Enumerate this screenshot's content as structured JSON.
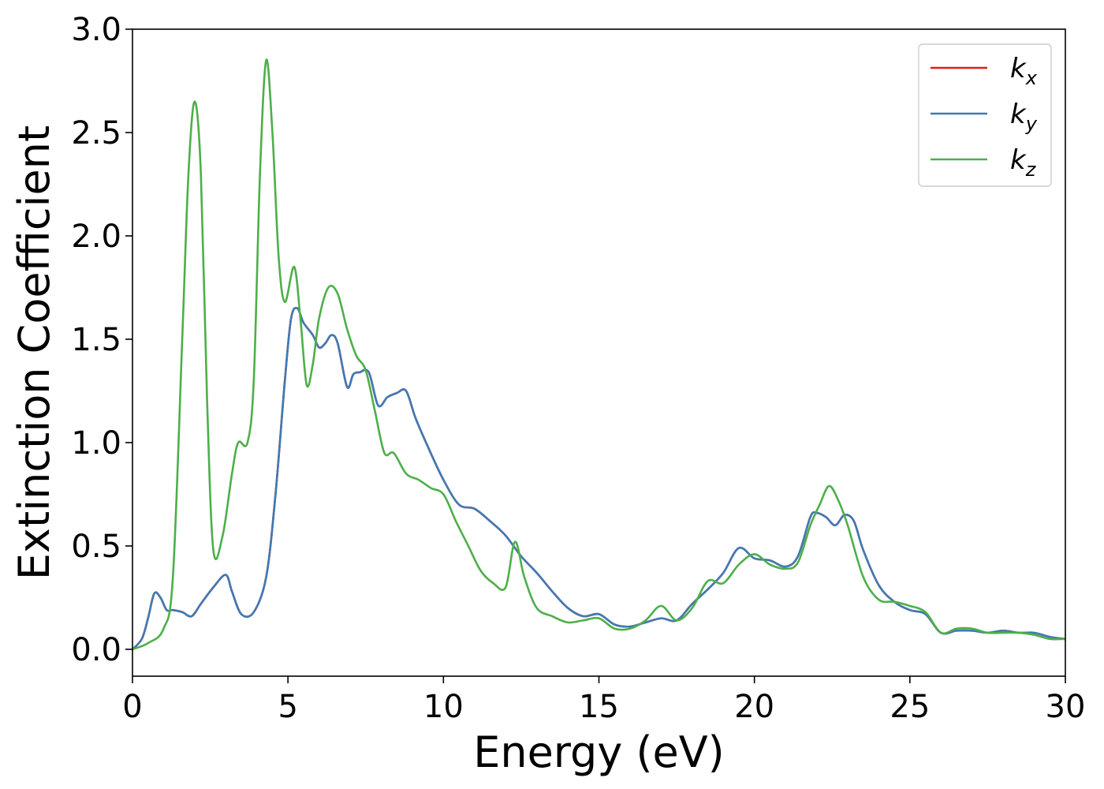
{
  "chart_data": {
    "type": "line",
    "title": "",
    "xlabel": "Energy (eV)",
    "ylabel": "Extinction Coefficient",
    "xlim": [
      0,
      30
    ],
    "ylim": [
      -0.13,
      3.0
    ],
    "xticks": [
      0,
      5,
      10,
      15,
      20,
      25,
      30
    ],
    "xtick_labels": [
      "0",
      "5",
      "10",
      "15",
      "20",
      "25",
      "30"
    ],
    "yticks": [
      0.0,
      0.5,
      1.0,
      1.5,
      2.0,
      2.5,
      3.0
    ],
    "ytick_labels": [
      "0.0",
      "0.5",
      "1.0",
      "1.5",
      "2.0",
      "2.5",
      "3.0"
    ],
    "grid": false,
    "legend_position": "top-right",
    "series": [
      {
        "name": "k",
        "subscript": "x",
        "color": "#e41a1c",
        "x": [
          0,
          0.3,
          0.5,
          0.7,
          0.9,
          1.1,
          1.3,
          1.6,
          1.9,
          2.2,
          2.6,
          3.0,
          3.2,
          3.5,
          3.9,
          4.3,
          4.6,
          4.9,
          5.1,
          5.3,
          5.5,
          5.8,
          6.0,
          6.2,
          6.4,
          6.6,
          6.9,
          7.1,
          7.3,
          7.6,
          7.9,
          8.2,
          8.5,
          8.8,
          9.1,
          9.5,
          10.0,
          10.5,
          11.0,
          11.5,
          12.0,
          12.5,
          13.0,
          13.5,
          14.0,
          14.5,
          15.0,
          15.5,
          16.0,
          16.5,
          17.0,
          17.5,
          18.0,
          18.5,
          19.0,
          19.5,
          20.0,
          20.5,
          21.0,
          21.4,
          21.8,
          22.0,
          22.3,
          22.6,
          22.9,
          23.2,
          23.5,
          24.0,
          24.5,
          25.0,
          25.5,
          26.0,
          26.5,
          27.0,
          27.5,
          28.0,
          28.5,
          29.0,
          29.5,
          30.0
        ],
        "y": [
          0.0,
          0.05,
          0.15,
          0.27,
          0.25,
          0.19,
          0.19,
          0.18,
          0.16,
          0.22,
          0.3,
          0.36,
          0.28,
          0.17,
          0.18,
          0.35,
          0.75,
          1.3,
          1.6,
          1.65,
          1.58,
          1.52,
          1.46,
          1.48,
          1.52,
          1.48,
          1.27,
          1.33,
          1.34,
          1.34,
          1.18,
          1.22,
          1.24,
          1.25,
          1.12,
          0.98,
          0.82,
          0.7,
          0.68,
          0.62,
          0.55,
          0.45,
          0.37,
          0.28,
          0.2,
          0.16,
          0.17,
          0.12,
          0.11,
          0.13,
          0.15,
          0.14,
          0.22,
          0.29,
          0.37,
          0.49,
          0.44,
          0.43,
          0.4,
          0.45,
          0.64,
          0.66,
          0.64,
          0.6,
          0.65,
          0.62,
          0.48,
          0.31,
          0.23,
          0.19,
          0.17,
          0.08,
          0.09,
          0.09,
          0.08,
          0.09,
          0.08,
          0.08,
          0.06,
          0.05
        ]
      },
      {
        "name": "k",
        "subscript": "y",
        "color": "#3f7ab5",
        "x": [
          0,
          0.3,
          0.5,
          0.7,
          0.9,
          1.1,
          1.3,
          1.6,
          1.9,
          2.2,
          2.6,
          3.0,
          3.2,
          3.5,
          3.9,
          4.3,
          4.6,
          4.9,
          5.1,
          5.3,
          5.5,
          5.8,
          6.0,
          6.2,
          6.4,
          6.6,
          6.9,
          7.1,
          7.3,
          7.6,
          7.9,
          8.2,
          8.5,
          8.8,
          9.1,
          9.5,
          10.0,
          10.5,
          11.0,
          11.5,
          12.0,
          12.5,
          13.0,
          13.5,
          14.0,
          14.5,
          15.0,
          15.5,
          16.0,
          16.5,
          17.0,
          17.5,
          18.0,
          18.5,
          19.0,
          19.5,
          20.0,
          20.5,
          21.0,
          21.4,
          21.8,
          22.0,
          22.3,
          22.6,
          22.9,
          23.2,
          23.5,
          24.0,
          24.5,
          25.0,
          25.5,
          26.0,
          26.5,
          27.0,
          27.5,
          28.0,
          28.5,
          29.0,
          29.5,
          30.0
        ],
        "y": [
          0.0,
          0.05,
          0.15,
          0.27,
          0.25,
          0.19,
          0.19,
          0.18,
          0.16,
          0.22,
          0.3,
          0.36,
          0.28,
          0.17,
          0.18,
          0.35,
          0.75,
          1.3,
          1.6,
          1.65,
          1.58,
          1.52,
          1.46,
          1.48,
          1.52,
          1.48,
          1.27,
          1.33,
          1.34,
          1.34,
          1.18,
          1.22,
          1.24,
          1.25,
          1.12,
          0.98,
          0.82,
          0.7,
          0.68,
          0.62,
          0.55,
          0.45,
          0.37,
          0.28,
          0.2,
          0.16,
          0.17,
          0.12,
          0.11,
          0.13,
          0.15,
          0.14,
          0.22,
          0.29,
          0.37,
          0.49,
          0.44,
          0.43,
          0.4,
          0.45,
          0.64,
          0.66,
          0.64,
          0.6,
          0.65,
          0.62,
          0.48,
          0.31,
          0.23,
          0.19,
          0.17,
          0.08,
          0.09,
          0.09,
          0.08,
          0.09,
          0.08,
          0.08,
          0.06,
          0.05
        ]
      },
      {
        "name": "k",
        "subscript": "z",
        "color": "#4daf4a",
        "x": [
          0,
          0.5,
          1.0,
          1.3,
          1.6,
          1.8,
          2.0,
          2.2,
          2.4,
          2.6,
          2.9,
          3.2,
          3.4,
          3.7,
          3.9,
          4.1,
          4.3,
          4.5,
          4.7,
          4.9,
          5.2,
          5.4,
          5.6,
          5.8,
          6.0,
          6.3,
          6.6,
          6.9,
          7.2,
          7.5,
          7.8,
          8.1,
          8.4,
          8.8,
          9.2,
          9.6,
          10.0,
          10.4,
          10.8,
          11.2,
          11.6,
          12.0,
          12.3,
          12.6,
          13.0,
          13.5,
          14.0,
          14.5,
          15.0,
          15.5,
          16.0,
          16.5,
          17.0,
          17.5,
          18.0,
          18.5,
          19.0,
          19.5,
          20.0,
          20.5,
          21.0,
          21.4,
          21.8,
          22.1,
          22.4,
          22.7,
          23.0,
          23.5,
          24.0,
          24.5,
          25.0,
          25.5,
          26.0,
          26.5,
          27.0,
          27.5,
          28.0,
          28.5,
          29.0,
          29.5,
          30.0
        ],
        "y": [
          0.0,
          0.03,
          0.1,
          0.35,
          1.5,
          2.3,
          2.65,
          2.3,
          1.2,
          0.48,
          0.55,
          0.85,
          1.0,
          1.0,
          1.3,
          2.3,
          2.85,
          2.5,
          1.9,
          1.68,
          1.85,
          1.6,
          1.28,
          1.38,
          1.6,
          1.75,
          1.72,
          1.55,
          1.42,
          1.35,
          1.15,
          0.95,
          0.95,
          0.85,
          0.82,
          0.78,
          0.75,
          0.62,
          0.5,
          0.38,
          0.32,
          0.3,
          0.52,
          0.35,
          0.2,
          0.16,
          0.13,
          0.14,
          0.15,
          0.1,
          0.1,
          0.14,
          0.21,
          0.14,
          0.2,
          0.33,
          0.32,
          0.41,
          0.46,
          0.41,
          0.39,
          0.42,
          0.6,
          0.7,
          0.79,
          0.72,
          0.6,
          0.35,
          0.24,
          0.23,
          0.21,
          0.18,
          0.08,
          0.1,
          0.1,
          0.08,
          0.08,
          0.08,
          0.07,
          0.05,
          0.05
        ]
      }
    ]
  }
}
